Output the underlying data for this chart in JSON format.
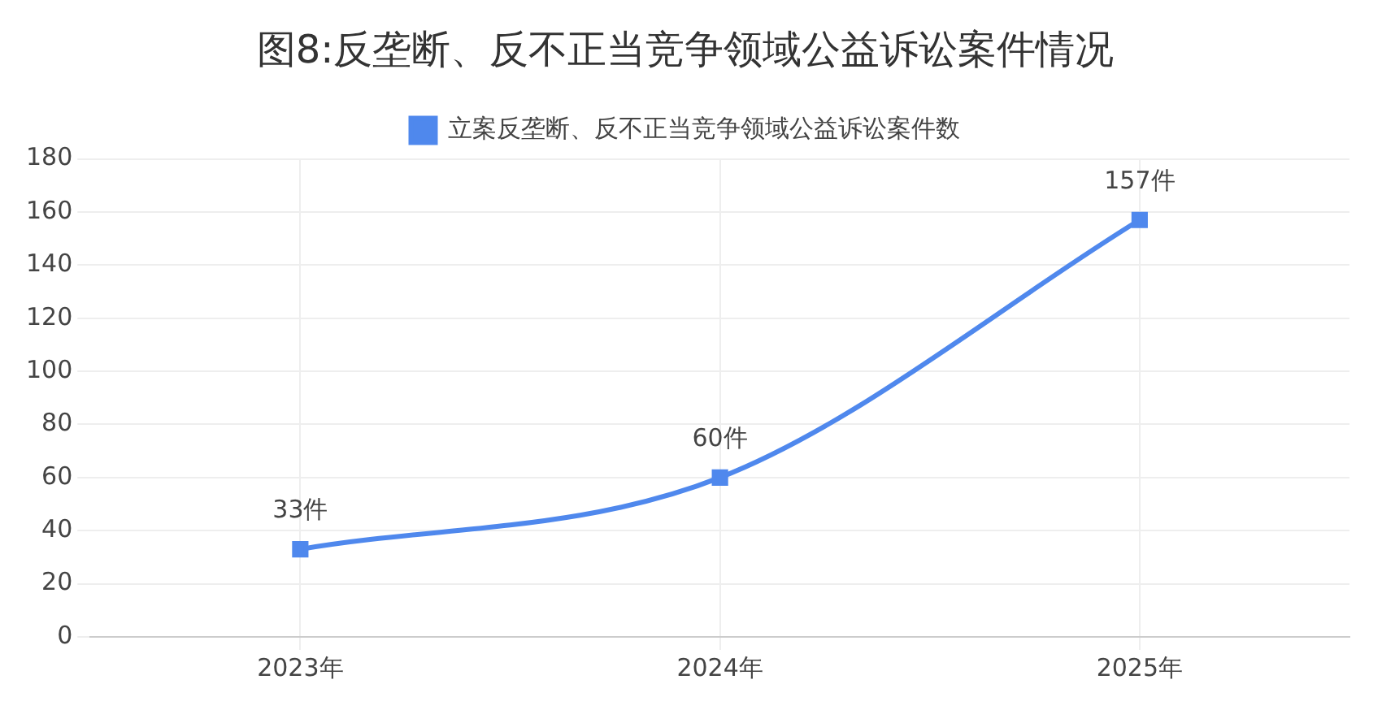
{
  "chart_data": {
    "type": "line",
    "title": "图8:反垄断、反不正当竞争领域公益诉讼案件情况",
    "categories": [
      "2023年",
      "2024年",
      "2025年"
    ],
    "series": [
      {
        "name": "立案反垄断、反不正当竞争领域公益诉讼案件数",
        "color": "#4f88ed",
        "values": [
          33,
          60,
          157
        ],
        "value_labels": [
          "33件",
          "60件",
          "157件"
        ]
      }
    ],
    "ylim": [
      0,
      180
    ],
    "yticks": [
      0,
      20,
      40,
      60,
      80,
      100,
      120,
      140,
      160,
      180
    ],
    "grid": true,
    "legend": "top",
    "marker": "square",
    "line_style": "solid"
  }
}
